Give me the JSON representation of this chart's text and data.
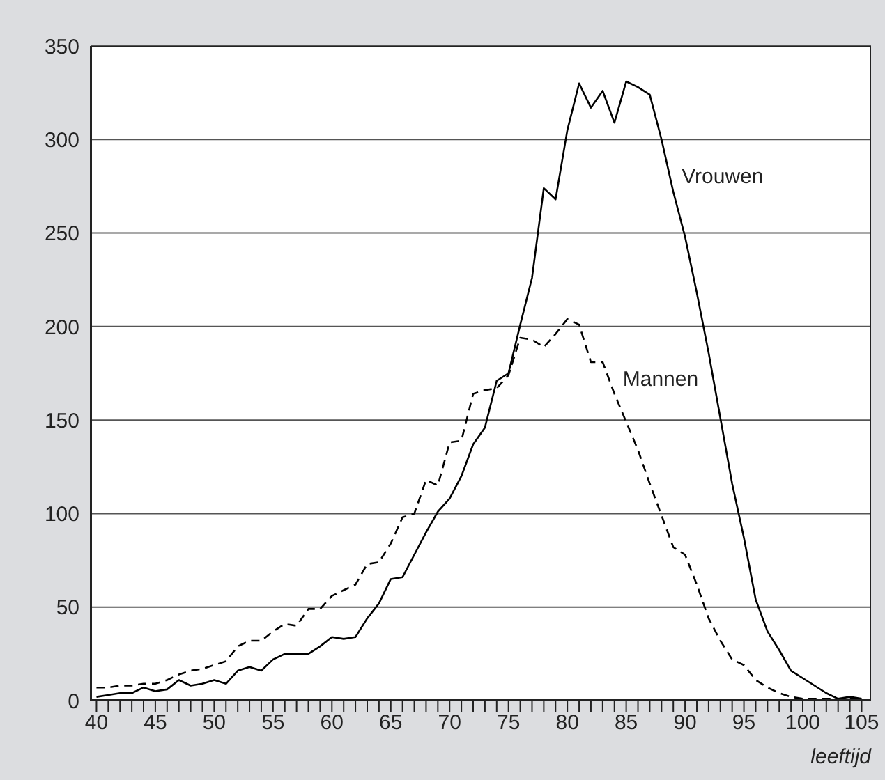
{
  "chart_data": {
    "type": "line",
    "xlabel": "leeftijd",
    "x": [
      40,
      41,
      42,
      43,
      44,
      45,
      46,
      47,
      48,
      49,
      50,
      51,
      52,
      53,
      54,
      55,
      56,
      57,
      58,
      59,
      60,
      61,
      62,
      63,
      64,
      65,
      66,
      67,
      68,
      69,
      70,
      71,
      72,
      73,
      74,
      75,
      76,
      77,
      78,
      79,
      80,
      81,
      82,
      83,
      84,
      85,
      86,
      87,
      88,
      89,
      90,
      91,
      92,
      93,
      94,
      95,
      96,
      97,
      98,
      99,
      100,
      101,
      102,
      103,
      104,
      105
    ],
    "series": [
      {
        "name": "Vrouwen",
        "color": "#000000",
        "line_style": "solid",
        "values": [
          2,
          3,
          4,
          4,
          7,
          5,
          6,
          11,
          8,
          9,
          11,
          9,
          16,
          18,
          16,
          22,
          25,
          25,
          25,
          29,
          34,
          33,
          34,
          44,
          52,
          65,
          66,
          78,
          90,
          101,
          108,
          120,
          137,
          146,
          171,
          175,
          201,
          226,
          274,
          268,
          305,
          330,
          317,
          326,
          309,
          331,
          328,
          324,
          300,
          272,
          248,
          218,
          186,
          151,
          116,
          87,
          54,
          37,
          27,
          16,
          12,
          8,
          4,
          1,
          2,
          1
        ]
      },
      {
        "name": "Mannen",
        "color": "#000000",
        "line_style": "dashed",
        "values": [
          7,
          7,
          8,
          8,
          9,
          9,
          11,
          14,
          16,
          17,
          19,
          21,
          29,
          32,
          32,
          37,
          41,
          40,
          49,
          49,
          56,
          59,
          62,
          73,
          74,
          84,
          98,
          100,
          118,
          115,
          138,
          139,
          164,
          166,
          167,
          174,
          194,
          193,
          189,
          196,
          204,
          201,
          181,
          181,
          164,
          149,
          134,
          116,
          99,
          82,
          78,
          62,
          44,
          32,
          22,
          19,
          11,
          7,
          4,
          2,
          1,
          1,
          1,
          1,
          1,
          1
        ]
      }
    ],
    "xlim": [
      39.5,
      105.8
    ],
    "ylim": [
      0,
      350
    ],
    "xticks": [
      40,
      {
        "value": 41,
        "label": null
      },
      {
        "value": 42,
        "label": null
      },
      {
        "value": 43,
        "label": null
      },
      {
        "value": 44,
        "label": null
      },
      45,
      {
        "value": 46,
        "label": null
      },
      {
        "value": 47,
        "label": null
      },
      {
        "value": 48,
        "label": null
      },
      {
        "value": 49,
        "label": null
      },
      50,
      {
        "value": 51,
        "label": null
      },
      {
        "value": 52,
        "label": null
      },
      {
        "value": 53,
        "label": null
      },
      {
        "value": 54,
        "label": null
      },
      55,
      {
        "value": 56,
        "label": null
      },
      {
        "value": 57,
        "label": null
      },
      {
        "value": 58,
        "label": null
      },
      {
        "value": 59,
        "label": null
      },
      60,
      {
        "value": 61,
        "label": null
      },
      {
        "value": 62,
        "label": null
      },
      {
        "value": 63,
        "label": null
      },
      {
        "value": 64,
        "label": null
      },
      65,
      {
        "value": 66,
        "label": null
      },
      {
        "value": 67,
        "label": null
      },
      {
        "value": 68,
        "label": null
      },
      {
        "value": 69,
        "label": null
      },
      70,
      {
        "value": 71,
        "label": null
      },
      {
        "value": 72,
        "label": null
      },
      {
        "value": 73,
        "label": null
      },
      {
        "value": 74,
        "label": null
      },
      75,
      {
        "value": 76,
        "label": null
      },
      {
        "value": 77,
        "label": null
      },
      {
        "value": 78,
        "label": null
      },
      {
        "value": 79,
        "label": null
      },
      80,
      {
        "value": 81,
        "label": null
      },
      {
        "value": 82,
        "label": null
      },
      {
        "value": 83,
        "label": null
      },
      {
        "value": 84,
        "label": null
      },
      85,
      {
        "value": 86,
        "label": null
      },
      {
        "value": 87,
        "label": null
      },
      {
        "value": 88,
        "label": null
      },
      {
        "value": 89,
        "label": null
      },
      90,
      {
        "value": 91,
        "label": null
      },
      {
        "value": 92,
        "label": null
      },
      {
        "value": 93,
        "label": null
      },
      {
        "value": 94,
        "label": null
      },
      95,
      {
        "value": 96,
        "label": null
      },
      {
        "value": 97,
        "label": null
      },
      {
        "value": 98,
        "label": null
      },
      {
        "value": 99,
        "label": null
      },
      100,
      {
        "value": 101,
        "label": null
      },
      {
        "value": 102,
        "label": null
      },
      {
        "value": 103,
        "label": null
      },
      {
        "value": 104,
        "label": null
      },
      105
    ],
    "yticks": [
      0,
      50,
      100,
      150,
      200,
      250,
      300,
      350
    ],
    "grid": "y",
    "marker": "none"
  }
}
